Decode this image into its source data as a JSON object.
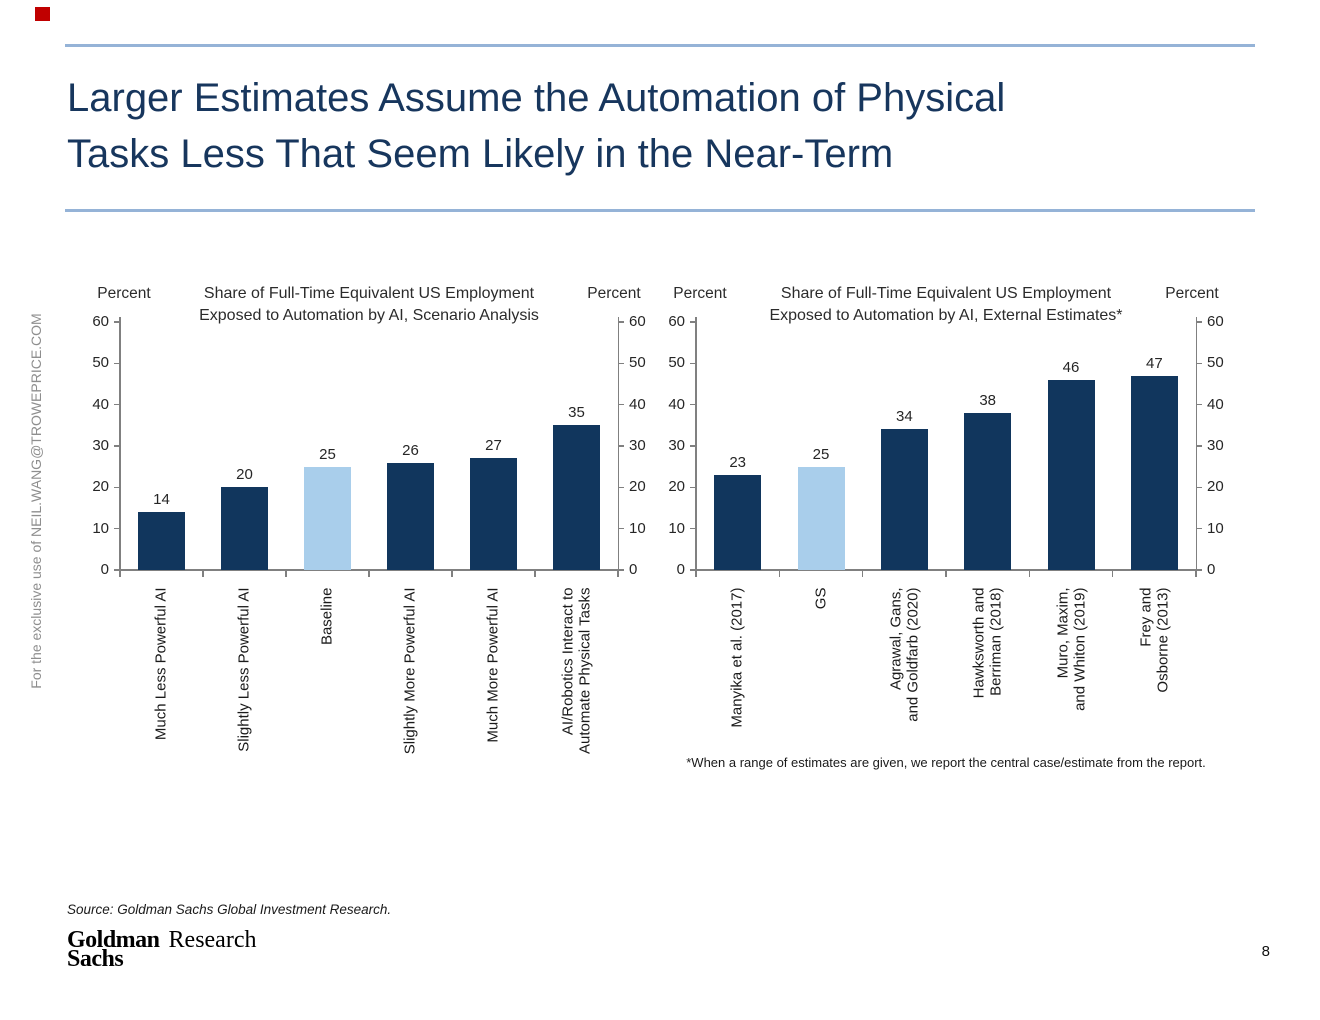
{
  "slide": {
    "title_line1": "Larger Estimates Assume the  Automation of Physical",
    "title_line2": "Tasks Less That Seem Likely in the Near-Term",
    "sidebar_watermark": "For the exclusive use of NEIL.WANG@TROWEPRICE.COM",
    "source_note": "Source: Goldman Sachs Global Investment Research.",
    "logo": {
      "brand_line1": "Goldman",
      "brand_line2": "Sachs",
      "division": "Research"
    },
    "page_number": "8",
    "colors": {
      "title_navy": "#17365D",
      "rule_blue": "#95B3D7",
      "corner_marker_red": "#C00000",
      "axis_gray": "#808080",
      "text_dark": "#262626"
    }
  },
  "chart_data": [
    {
      "type": "bar",
      "title": "Share of Full-Time Equivalent US Employment\nExposed to Automation by AI, Scenario Analysis",
      "axis_label_left": "Percent",
      "axis_label_right": "Percent",
      "ylim": [
        0,
        60
      ],
      "yticks": [
        0,
        10,
        20,
        30,
        40,
        50,
        60
      ],
      "grid": false,
      "legend": "none",
      "data_labels": true,
      "categories": [
        "Much Less Powerful AI",
        "Slightly Less Powerful AI",
        "Baseline",
        "Slightly More Powerful AI",
        "Much More Powerful AI",
        "AI/Robotics Interact to\nAutomate Physical Tasks"
      ],
      "values": [
        14,
        20,
        25,
        26,
        27,
        35
      ],
      "highlight_index": 2,
      "bar_color": "#11365D",
      "highlight_color": "#A9CEEB"
    },
    {
      "type": "bar",
      "title": "Share of Full-Time Equivalent US Employment\nExposed to Automation by AI, External Estimates*",
      "axis_label_left": "Percent",
      "axis_label_right": "Percent",
      "ylim": [
        0,
        60
      ],
      "yticks": [
        0,
        10,
        20,
        30,
        40,
        50,
        60
      ],
      "grid": false,
      "legend": "none",
      "data_labels": true,
      "categories": [
        "Manyika et al. (2017)",
        "GS",
        "Agrawal, Gans,\nand Goldfarb (2020)",
        "Hawksworth and\nBerriman (2018)",
        "Muro, Maxim,\nand Whiton (2019)",
        "Frey and\nOsborne (2013)"
      ],
      "values": [
        23,
        25,
        34,
        38,
        46,
        47
      ],
      "highlight_index": 1,
      "bar_color": "#11365D",
      "highlight_color": "#A9CEEB",
      "footnote": "*When a range of estimates are given, we report the central case/estimate from the report."
    }
  ]
}
